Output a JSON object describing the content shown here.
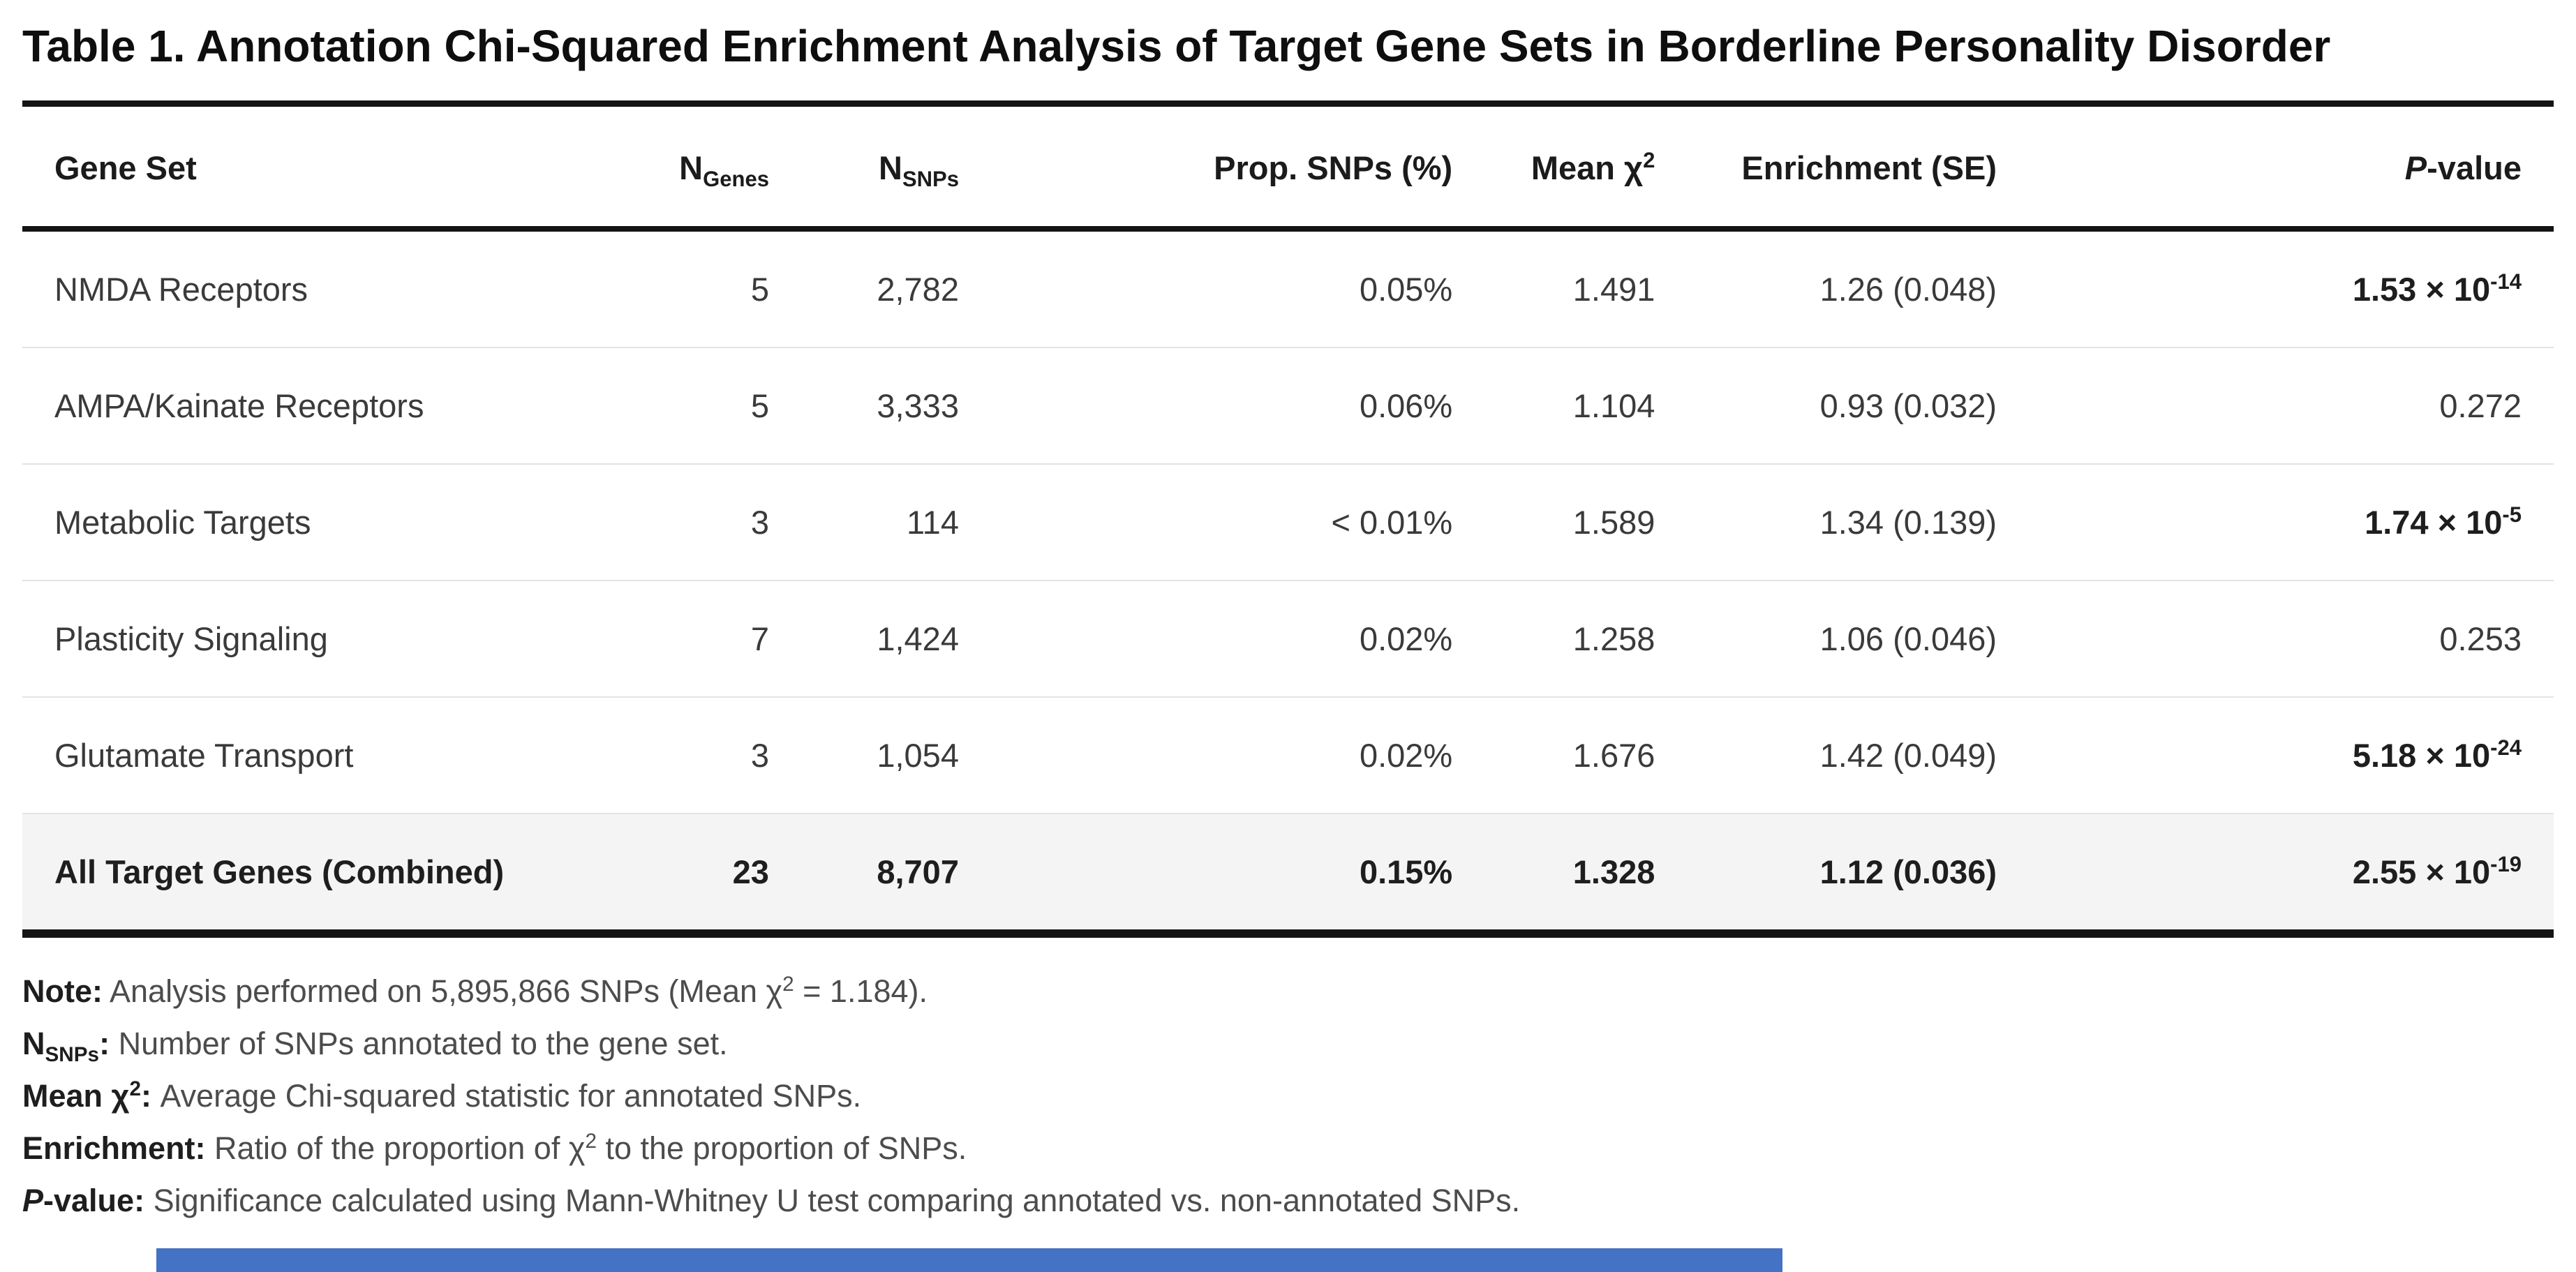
{
  "title": "Table 1. Annotation Chi-Squared Enrichment Analysis of Target Gene Sets in Borderline Personality Disorder",
  "table": {
    "column_keys": [
      "gene-set",
      "n-genes",
      "n-snps",
      "prop-snps",
      "mean-chi2",
      "enrichment",
      "p-value"
    ],
    "columns": [
      [
        {
          "t": "Gene Set"
        }
      ],
      [
        {
          "t": "N"
        },
        {
          "t": "Genes",
          "sub": true
        }
      ],
      [
        {
          "t": "N"
        },
        {
          "t": "SNPs",
          "sub": true
        }
      ],
      [
        {
          "t": "Prop. SNPs (%)"
        }
      ],
      [
        {
          "t": "Mean χ"
        },
        {
          "t": "2",
          "sup": true
        }
      ],
      [
        {
          "t": "Enrichment (SE)"
        }
      ],
      [
        {
          "t": "P",
          "i": true
        },
        {
          "t": "-value"
        }
      ]
    ],
    "rows": [
      {
        "is_total": false,
        "cells": [
          [
            {
              "t": "NMDA Receptors"
            }
          ],
          [
            {
              "t": "5"
            }
          ],
          [
            {
              "t": "2,782"
            }
          ],
          [
            {
              "t": "0.05%"
            }
          ],
          [
            {
              "t": "1.491"
            }
          ],
          [
            {
              "t": "1.26 (0.048)"
            }
          ],
          [
            {
              "t": "1.53 × 10",
              "b": true
            },
            {
              "t": "-14",
              "b": true,
              "sup": true
            }
          ]
        ]
      },
      {
        "is_total": false,
        "cells": [
          [
            {
              "t": "AMPA/Kainate Receptors"
            }
          ],
          [
            {
              "t": "5"
            }
          ],
          [
            {
              "t": "3,333"
            }
          ],
          [
            {
              "t": "0.06%"
            }
          ],
          [
            {
              "t": "1.104"
            }
          ],
          [
            {
              "t": "0.93 (0.032)"
            }
          ],
          [
            {
              "t": "0.272"
            }
          ]
        ]
      },
      {
        "is_total": false,
        "cells": [
          [
            {
              "t": "Metabolic Targets"
            }
          ],
          [
            {
              "t": "3"
            }
          ],
          [
            {
              "t": "114"
            }
          ],
          [
            {
              "t": "< 0.01%"
            }
          ],
          [
            {
              "t": "1.589"
            }
          ],
          [
            {
              "t": "1.34 (0.139)"
            }
          ],
          [
            {
              "t": "1.74 × 10",
              "b": true
            },
            {
              "t": "-5",
              "b": true,
              "sup": true
            }
          ]
        ]
      },
      {
        "is_total": false,
        "cells": [
          [
            {
              "t": "Plasticity Signaling"
            }
          ],
          [
            {
              "t": "7"
            }
          ],
          [
            {
              "t": "1,424"
            }
          ],
          [
            {
              "t": "0.02%"
            }
          ],
          [
            {
              "t": "1.258"
            }
          ],
          [
            {
              "t": "1.06 (0.046)"
            }
          ],
          [
            {
              "t": "0.253"
            }
          ]
        ]
      },
      {
        "is_total": false,
        "cells": [
          [
            {
              "t": "Glutamate Transport"
            }
          ],
          [
            {
              "t": "3"
            }
          ],
          [
            {
              "t": "1,054"
            }
          ],
          [
            {
              "t": "0.02%"
            }
          ],
          [
            {
              "t": "1.676"
            }
          ],
          [
            {
              "t": "1.42 (0.049)"
            }
          ],
          [
            {
              "t": "5.18 × 10",
              "b": true
            },
            {
              "t": "-24",
              "b": true,
              "sup": true
            }
          ]
        ]
      },
      {
        "is_total": true,
        "cells": [
          [
            {
              "t": "All Target Genes (Combined)"
            }
          ],
          [
            {
              "t": "23"
            }
          ],
          [
            {
              "t": "8,707"
            }
          ],
          [
            {
              "t": "0.15%"
            }
          ],
          [
            {
              "t": "1.328"
            }
          ],
          [
            {
              "t": "1.12 (0.036)"
            }
          ],
          [
            {
              "t": "2.55 × 10"
            },
            {
              "t": "-19",
              "sup": true
            }
          ]
        ]
      }
    ]
  },
  "footnotes": [
    {
      "key": "note",
      "segments": [
        {
          "t": "Note:",
          "b": true
        },
        {
          "t": " Analysis performed on 5,895,866 SNPs (Mean χ"
        },
        {
          "t": "2",
          "sup": true
        },
        {
          "t": " = 1.184)."
        }
      ]
    },
    {
      "key": "n-snps",
      "segments": [
        {
          "t": "N",
          "b": true
        },
        {
          "t": "SNPs",
          "b": true,
          "sub": true
        },
        {
          "t": ":",
          "b": true
        },
        {
          "t": " Number of SNPs annotated to the gene set."
        }
      ]
    },
    {
      "key": "mean-chi2",
      "segments": [
        {
          "t": "Mean χ",
          "b": true
        },
        {
          "t": "2",
          "b": true,
          "sup": true
        },
        {
          "t": ":",
          "b": true
        },
        {
          "t": " Average Chi-squared statistic for annotated SNPs."
        }
      ]
    },
    {
      "key": "enrichment",
      "segments": [
        {
          "t": "Enrichment:",
          "b": true
        },
        {
          "t": " Ratio of the proportion of χ"
        },
        {
          "t": "2",
          "sup": true
        },
        {
          "t": " to the proportion of SNPs."
        }
      ]
    },
    {
      "key": "p-value",
      "segments": [
        {
          "t": "P",
          "b": true,
          "i": true
        },
        {
          "t": "-value:",
          "b": true
        },
        {
          "t": " Significance calculated using Mann-Whitney U test comparing annotated vs. non-annotated SNPs."
        }
      ]
    }
  ],
  "colors": {
    "accent_bar": "#4472c4",
    "total_row_bg": "#f4f4f4",
    "border_dark": "#141414",
    "row_separator": "#e3e3e3"
  }
}
